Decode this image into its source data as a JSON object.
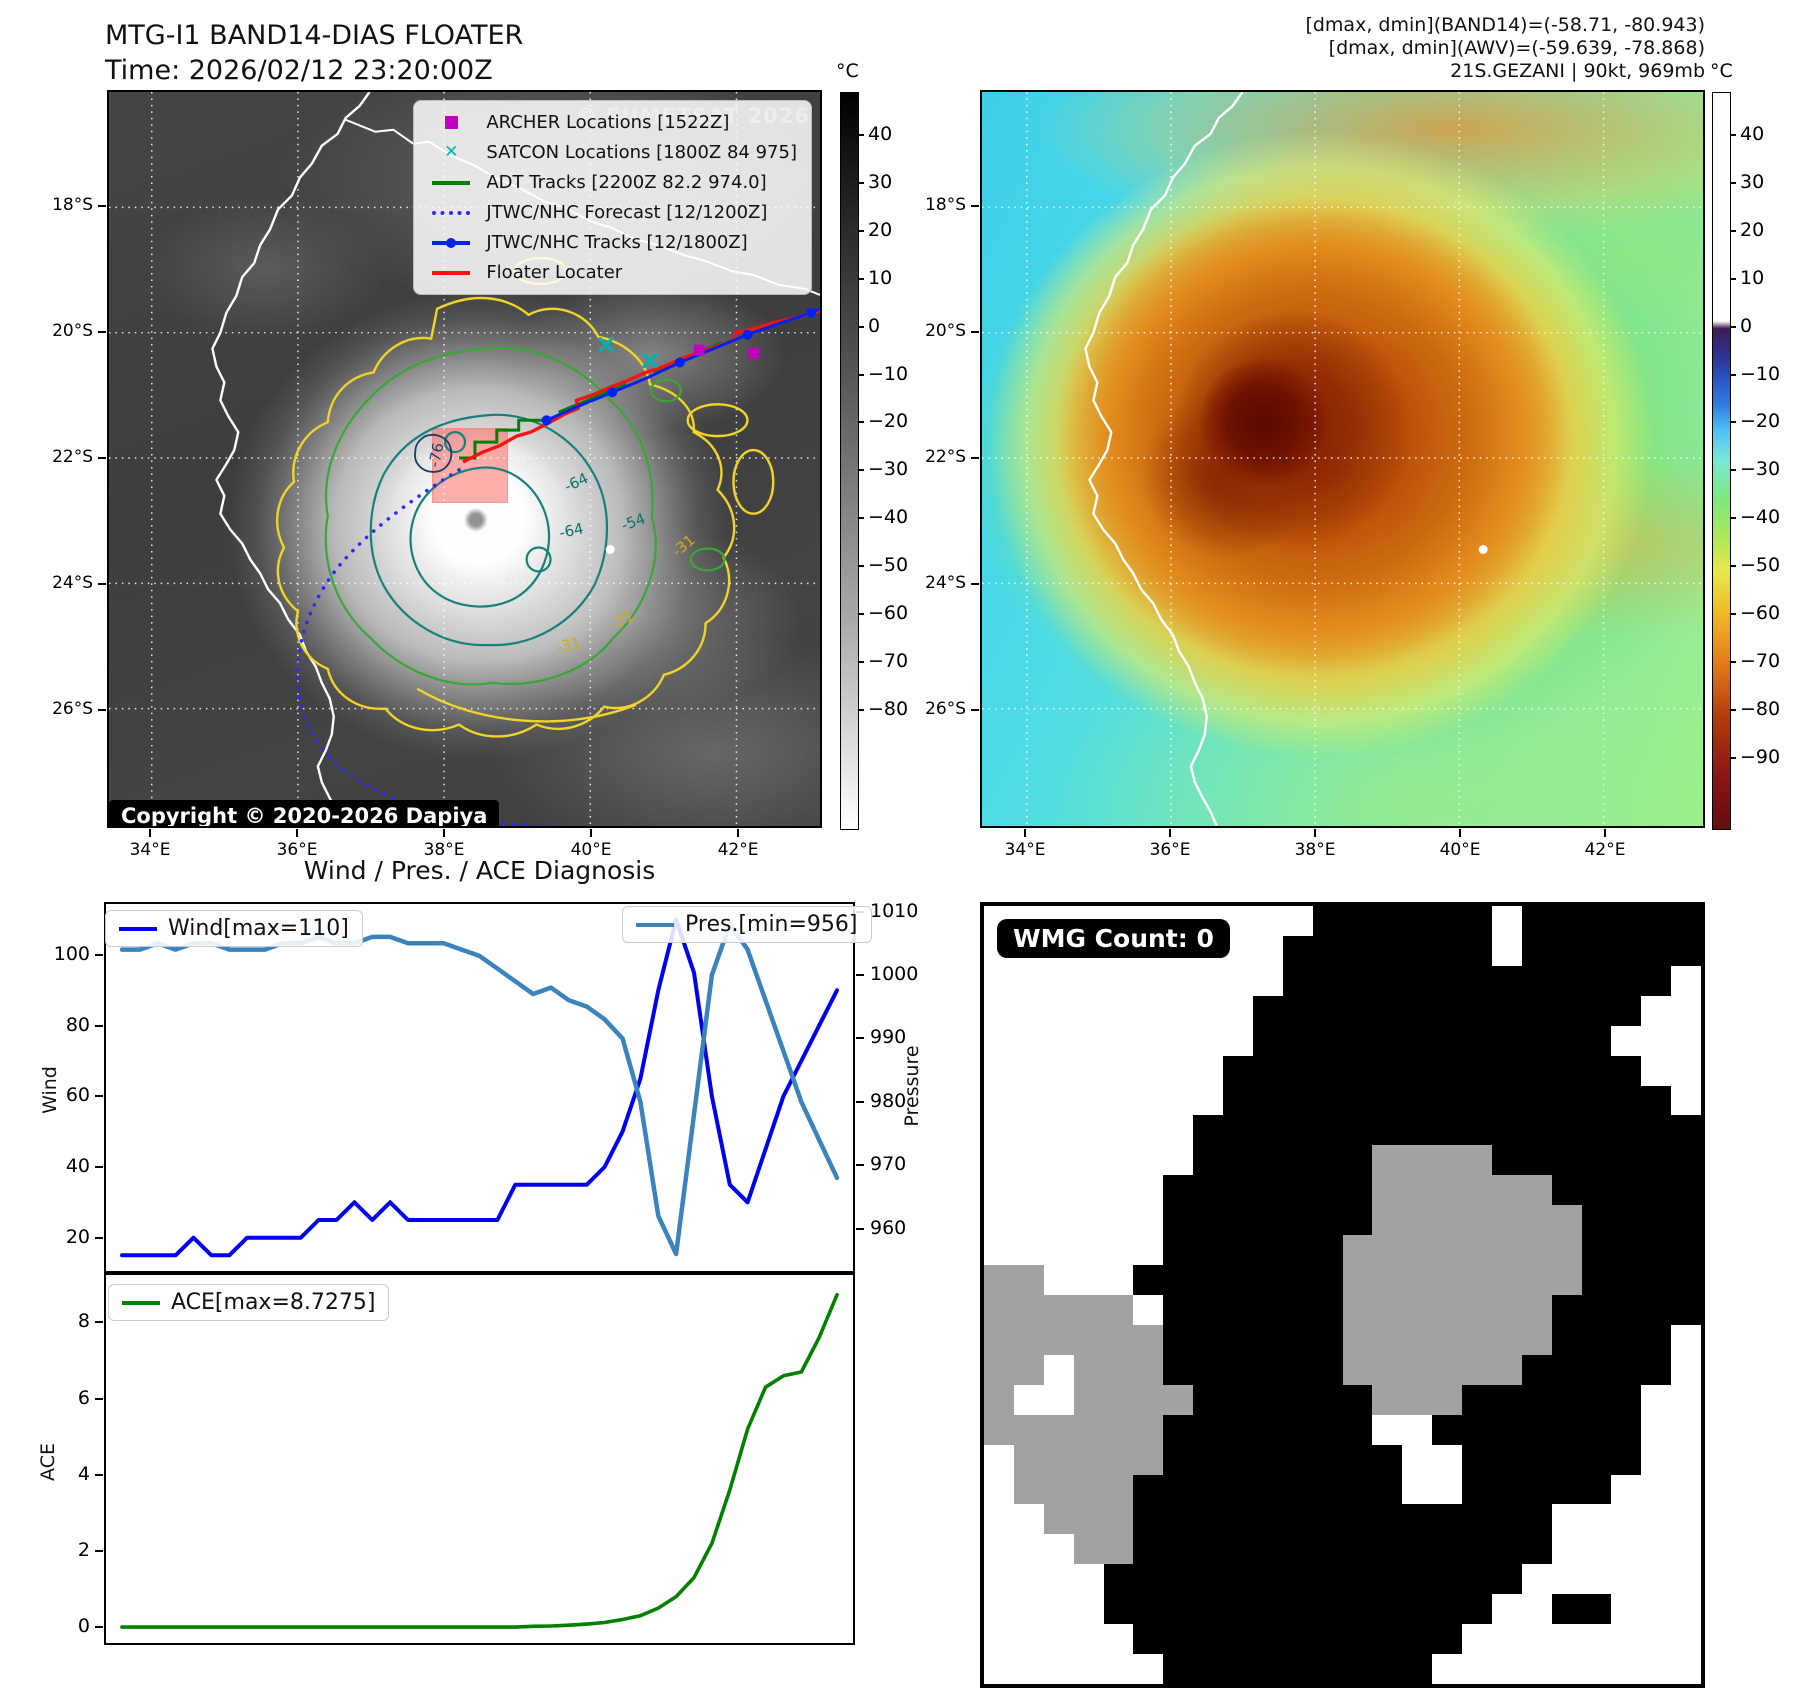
{
  "left_map": {
    "title": "MTG-I1 BAND14-DIAS FLOATER",
    "time_label": "Time: 2026/02/12 23:20:00Z",
    "watermark": "© EUMETSAT 2026",
    "copyright": "Copyright © 2020-2026 Dapiya",
    "lat_ticks": [
      "18°S",
      "20°S",
      "22°S",
      "24°S",
      "26°S"
    ],
    "lon_ticks": [
      "34°E",
      "36°E",
      "38°E",
      "40°E",
      "42°E"
    ],
    "contour_labels": [
      "-76",
      "-64",
      "-64",
      "-54",
      "-31",
      "-31",
      "-31"
    ],
    "colorbar": {
      "unit": "°C",
      "ticks": [
        "40",
        "30",
        "20",
        "10",
        "0",
        "−10",
        "−20",
        "−30",
        "−40",
        "−50",
        "−60",
        "−70",
        "−80"
      ]
    },
    "legend": [
      {
        "label": "ARCHER Locations [1522Z]",
        "marker": "square",
        "color": "#c000c0"
      },
      {
        "label": "SATCON Locations [1800Z 84 975]",
        "marker": "x",
        "color": "#00b2b2"
      },
      {
        "label": "ADT Tracks [2200Z 82.2 974.0]",
        "marker": "line",
        "color": "#007f00"
      },
      {
        "label": "JTWC/NHC Forecast [12/1200Z]",
        "marker": "dotted",
        "color": "#2a2aff"
      },
      {
        "label": "JTWC/NHC Tracks [12/1800Z]",
        "marker": "line-dot",
        "color": "#0022ee"
      },
      {
        "label": "Floater Locater",
        "marker": "line",
        "color": "#f01414"
      }
    ]
  },
  "right_map": {
    "header_lines": [
      "[dmax, dmin](BAND14)=(-58.71, -80.943)",
      "[dmax, dmin](AWV)=(-59.639, -78.868)",
      "21S.GEZANI | 90kt, 969mb"
    ],
    "lat_ticks": [
      "18°S",
      "20°S",
      "22°S",
      "24°S",
      "26°S"
    ],
    "lon_ticks": [
      "34°E",
      "36°E",
      "38°E",
      "40°E",
      "42°E"
    ],
    "colorbar": {
      "unit": "°C",
      "ticks": [
        "40",
        "30",
        "20",
        "10",
        "0",
        "−10",
        "−20",
        "−30",
        "−40",
        "−50",
        "−60",
        "−70",
        "−80",
        "−90"
      ]
    }
  },
  "charts": {
    "section_title": "Wind / Pres. / ACE Diagnosis",
    "wind_ylabel": "Wind",
    "pressure_ylabel": "Pressure",
    "ace_ylabel": "ACE",
    "wind_legend": "Wind[max=110]",
    "pres_legend": "Pres.[min=956]",
    "ace_legend": "ACE[max=8.7275]"
  },
  "chart_data": [
    {
      "type": "line",
      "title": "Wind / Pres. / ACE Diagnosis",
      "x_note": "time steps, no x tick labels shown",
      "ylabel": "Wind",
      "ylim": [
        10,
        115
      ],
      "yticks": [
        20,
        40,
        60,
        80,
        100
      ],
      "y2label": "Pressure",
      "y2lim": [
        953,
        1011.5
      ],
      "y2ticks": [
        960,
        970,
        980,
        990,
        1000,
        1010
      ],
      "grid": false,
      "series": [
        {
          "name": "Wind[max=110]",
          "axis": "left",
          "color": "#0000ee",
          "max": 110,
          "values": [
            15,
            15,
            15,
            15,
            20,
            15,
            15,
            20,
            20,
            20,
            20,
            25,
            25,
            30,
            25,
            30,
            25,
            25,
            25,
            25,
            25,
            25,
            35,
            35,
            35,
            35,
            35,
            40,
            50,
            65,
            90,
            110,
            95,
            60,
            35,
            30,
            45,
            60,
            70,
            80,
            90
          ]
        },
        {
          "name": "Pres.[min=956]",
          "axis": "right",
          "color": "#3b83bd",
          "min": 956,
          "values": [
            1004,
            1004,
            1005,
            1004,
            1005,
            1005,
            1004,
            1004,
            1004,
            1005,
            1005,
            1006,
            1005,
            1005,
            1006,
            1006,
            1005,
            1005,
            1005,
            1004,
            1003,
            1001,
            999,
            997,
            998,
            996,
            995,
            993,
            990,
            980,
            962,
            956,
            978,
            1000,
            1008,
            1004,
            996,
            988,
            980,
            974,
            968
          ]
        }
      ],
      "legend_positions": {
        "wind": "upper left",
        "pres": "upper right"
      }
    },
    {
      "type": "line",
      "ylabel": "ACE",
      "ylim": [
        -0.47,
        9.3
      ],
      "yticks": [
        0,
        2,
        4,
        6,
        8
      ],
      "grid": false,
      "series": [
        {
          "name": "ACE[max=8.7275]",
          "color": "#008000",
          "max": 8.7275,
          "values": [
            0,
            0,
            0,
            0,
            0,
            0,
            0,
            0,
            0,
            0,
            0,
            0,
            0,
            0,
            0,
            0,
            0,
            0,
            0,
            0,
            0,
            0,
            0,
            0.02,
            0.03,
            0.05,
            0.08,
            0.12,
            0.2,
            0.3,
            0.5,
            0.8,
            1.3,
            2.2,
            3.6,
            5.2,
            6.3,
            6.6,
            6.7,
            7.6,
            8.7275
          ]
        }
      ],
      "legend_positions": {
        "ace": "upper left"
      }
    }
  ],
  "wmg": {
    "badge": "WMG Count: 0",
    "palette": {
      ".": "#ffffff",
      "g": "#a2a2a2",
      "k": "#000000"
    },
    "grid": [
      "...........kkkkkk.kkkkkk",
      "..........kkkkkkk.kkkkkk",
      "..........kkkkkkkkkkkkk.",
      ".........kkkkkkkkkkkkk..",
      ".........kkkkkkkkkkkk...",
      "........kkkkkkkkkkkkkk..",
      "........kkkkkkkkkkkkkkk.",
      ".......kkkkkkkkkkkkkkkkk",
      ".......kkkkkkggggkkkkkkk",
      "......kkkkkkkggggggkkkkk",
      "......kkkkkkkgggggggkkkk",
      "......kkkkkkggggggggkkkk",
      "gg...kkkkkkkggggggggkkkk",
      "ggggg.kkkkkkgggggggkkkkk",
      "ggggggkkkkkkgggggggkkkk.",
      "gg.gggkkkkkkggggggkkkkk.",
      "g..ggggkkkkkkgggkkkkkk..",
      "ggggggkkkkkkk..kkkkkkk..",
      ".gggggkkkkkkkk..kkkkkk..",
      ".ggggkkkkkkkkk..kkkkk...",
      "..gggkkkkkkkkkkkkkk.....",
      "...ggkkkkkkkkkkkkkk.....",
      "....kkkkkkkkkkkkkk......",
      "....kkkkkkkkkkkkk..kk...",
      ".....kkkkkkkkkkk........",
      "......kkkkkkkkk........."
    ]
  }
}
